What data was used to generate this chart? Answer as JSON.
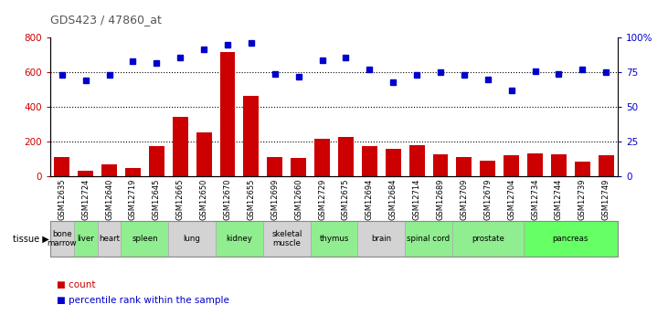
{
  "title": "GDS423 / 47860_at",
  "samples": [
    "GSM12635",
    "GSM12724",
    "GSM12640",
    "GSM12719",
    "GSM12645",
    "GSM12665",
    "GSM12650",
    "GSM12670",
    "GSM12655",
    "GSM12699",
    "GSM12660",
    "GSM12729",
    "GSM12675",
    "GSM12694",
    "GSM12684",
    "GSM12714",
    "GSM12689",
    "GSM12709",
    "GSM12679",
    "GSM12704",
    "GSM12734",
    "GSM12744",
    "GSM12739",
    "GSM12749"
  ],
  "counts": [
    110,
    35,
    70,
    50,
    175,
    345,
    255,
    720,
    465,
    110,
    105,
    215,
    230,
    175,
    160,
    180,
    125,
    110,
    90,
    120,
    135,
    130,
    85,
    120
  ],
  "percentiles": [
    73,
    69,
    73,
    83,
    82,
    86,
    92,
    95,
    96,
    74,
    72,
    84,
    86,
    77,
    68,
    73,
    75,
    73,
    70,
    62,
    76,
    74,
    77,
    75
  ],
  "tissues": [
    {
      "name": "bone\nmarrow",
      "start": 0,
      "end": 1,
      "color": "#d3d3d3"
    },
    {
      "name": "liver",
      "start": 1,
      "end": 2,
      "color": "#90ee90"
    },
    {
      "name": "heart",
      "start": 2,
      "end": 3,
      "color": "#d3d3d3"
    },
    {
      "name": "spleen",
      "start": 3,
      "end": 5,
      "color": "#90ee90"
    },
    {
      "name": "lung",
      "start": 5,
      "end": 7,
      "color": "#d3d3d3"
    },
    {
      "name": "kidney",
      "start": 7,
      "end": 9,
      "color": "#90ee90"
    },
    {
      "name": "skeletal\nmuscle",
      "start": 9,
      "end": 11,
      "color": "#d3d3d3"
    },
    {
      "name": "thymus",
      "start": 11,
      "end": 13,
      "color": "#90ee90"
    },
    {
      "name": "brain",
      "start": 13,
      "end": 15,
      "color": "#d3d3d3"
    },
    {
      "name": "spinal cord",
      "start": 15,
      "end": 17,
      "color": "#90ee90"
    },
    {
      "name": "prostate",
      "start": 17,
      "end": 20,
      "color": "#90ee90"
    },
    {
      "name": "pancreas",
      "start": 20,
      "end": 24,
      "color": "#66ff66"
    }
  ],
  "bar_color": "#cc0000",
  "dot_color": "#0000cc",
  "left_ylim": [
    0,
    800
  ],
  "left_yticks": [
    0,
    200,
    400,
    600,
    800
  ],
  "right_ylim": [
    0,
    100
  ],
  "right_yticks": [
    0,
    25,
    50,
    75,
    100
  ],
  "right_yticklabels": [
    "0",
    "25",
    "50",
    "75",
    "100%"
  ],
  "grid_values": [
    200,
    400,
    600
  ],
  "fig_width": 7.31,
  "fig_height": 3.45
}
